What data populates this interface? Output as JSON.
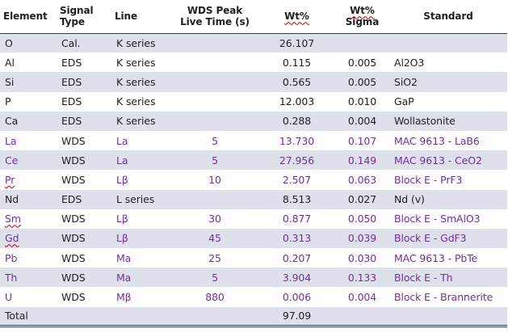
{
  "table": {
    "headers": {
      "element": "Element",
      "signal_type_1": "Signal",
      "signal_type_2": "Type",
      "line": "Line",
      "wds_time_1": "WDS Peak",
      "wds_time_2": "Live Time (s)",
      "wt": "Wt%",
      "sigma_1": "Wt%",
      "sigma_2": "Sigma",
      "standard": "Standard"
    },
    "rows": [
      {
        "element": "O",
        "type": "Cal.",
        "line": "K series",
        "time": "",
        "wt": "26.107",
        "sigma": "",
        "standard": ""
      },
      {
        "element": "Al",
        "type": "EDS",
        "line": "K series",
        "time": "",
        "wt": "0.115",
        "sigma": "0.005",
        "standard": "Al2O3"
      },
      {
        "element": "Si",
        "type": "EDS",
        "line": "K series",
        "time": "",
        "wt": "0.565",
        "sigma": "0.005",
        "standard": "SiO2"
      },
      {
        "element": "P",
        "type": "EDS",
        "line": "K series",
        "time": "",
        "wt": "12.003",
        "sigma": "0.010",
        "standard": "GaP"
      },
      {
        "element": "Ca",
        "type": "EDS",
        "line": "K series",
        "time": "",
        "wt": "0.288",
        "sigma": "0.004",
        "standard": "Wollastonite"
      },
      {
        "element": "La",
        "type": "WDS",
        "line": "La",
        "time": "5",
        "wt": "13.730",
        "sigma": "0.107",
        "standard": "MAC 9613 - LaB6"
      },
      {
        "element": "Ce",
        "type": "WDS",
        "line": "La",
        "time": "5",
        "wt": "27.956",
        "sigma": "0.149",
        "standard": "MAC 9613 - CeO2"
      },
      {
        "element": "Pr",
        "type": "WDS",
        "line": "Lβ",
        "time": "10",
        "wt": "2.507",
        "sigma": "0.063",
        "standard": "Block E - PrF3"
      },
      {
        "element": "Nd",
        "type": "EDS",
        "line": "L series",
        "time": "",
        "wt": "8.513",
        "sigma": "0.027",
        "standard": "Nd (v)"
      },
      {
        "element": "Sm",
        "type": "WDS",
        "line": "Lβ",
        "time": "30",
        "wt": "0.877",
        "sigma": "0.050",
        "standard": "Block E - SmAlO3"
      },
      {
        "element": "Gd",
        "type": "WDS",
        "line": "Lβ",
        "time": "45",
        "wt": "0.313",
        "sigma": "0.039",
        "standard": "Block E - GdF3"
      },
      {
        "element": "Pb",
        "type": "WDS",
        "line": "Ma",
        "time": "25",
        "wt": "0.207",
        "sigma": "0.030",
        "standard": "MAC 9613 - PbTe"
      },
      {
        "element": "Th",
        "type": "WDS",
        "line": "Ma",
        "time": "5",
        "wt": "3.904",
        "sigma": "0.133",
        "standard": "Block E - Th"
      },
      {
        "element": "U",
        "type": "WDS",
        "line": "Mβ",
        "time": "880",
        "wt": "0.006",
        "sigma": "0.004",
        "standard": "Block E - Brannerite"
      }
    ],
    "total": {
      "label": "Total",
      "wt": "97.09"
    }
  },
  "colors": {
    "wds_text": "#7030a0",
    "row_shade": "#dfe1ea",
    "rule": "#1f3864",
    "spellcheck_squiggle": "#c00000"
  }
}
